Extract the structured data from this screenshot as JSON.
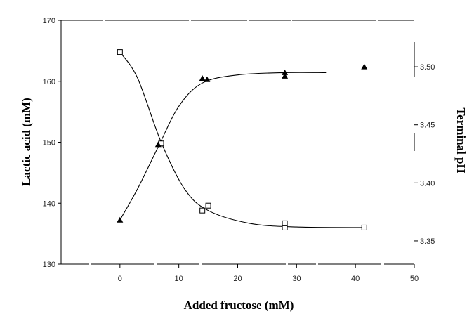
{
  "chart_data": {
    "type": "line",
    "title": "",
    "xlabel": "Added fructose (mM)",
    "ylabel": "Lactic acid (mM)",
    "y2label": "Terminal pH",
    "xlim": [
      -10,
      50
    ],
    "ylim": [
      130,
      170
    ],
    "y2lim": [
      3.33,
      3.54
    ],
    "x_ticks": [
      "0",
      "10",
      "20",
      "30",
      "40",
      "50"
    ],
    "y_ticks": [
      "130",
      "140",
      "150",
      "160",
      "170"
    ],
    "y2_ticks": [
      "3.35",
      "3.40",
      "3.45",
      "3.50"
    ],
    "grid": false,
    "legend": "none",
    "series": [
      {
        "axis": "left",
        "marker": "open-square",
        "points": [
          {
            "x": 0,
            "y": 164.8
          },
          {
            "x": 7,
            "y": 149.8
          },
          {
            "x": 14,
            "y": 138.8
          },
          {
            "x": 15,
            "y": 139.6
          },
          {
            "x": 28,
            "y": 136.0
          },
          {
            "x": 28,
            "y": 136.7
          },
          {
            "x": 41.5,
            "y": 136.0
          }
        ],
        "curve": [
          {
            "x": 0,
            "y": 164.8
          },
          {
            "x": 3,
            "y": 160.5
          },
          {
            "x": 7,
            "y": 150.0
          },
          {
            "x": 11,
            "y": 142.3
          },
          {
            "x": 15,
            "y": 138.8
          },
          {
            "x": 22,
            "y": 136.7
          },
          {
            "x": 30,
            "y": 136.1
          },
          {
            "x": 41.5,
            "y": 136.0
          }
        ]
      },
      {
        "axis": "right",
        "marker": "filled-triangle",
        "points": [
          {
            "x": 0,
            "y": 3.368
          },
          {
            "x": 6.5,
            "y": 3.433
          },
          {
            "x": 14,
            "y": 3.49
          },
          {
            "x": 14.8,
            "y": 3.489
          },
          {
            "x": 28,
            "y": 3.495
          },
          {
            "x": 28,
            "y": 3.492
          },
          {
            "x": 41.5,
            "y": 3.5
          }
        ],
        "curve": [
          {
            "x": 0,
            "y": 3.368
          },
          {
            "x": 3,
            "y": 3.395
          },
          {
            "x": 6.5,
            "y": 3.431
          },
          {
            "x": 10,
            "y": 3.466
          },
          {
            "x": 14,
            "y": 3.486
          },
          {
            "x": 20,
            "y": 3.493
          },
          {
            "x": 28,
            "y": 3.495
          },
          {
            "x": 35,
            "y": 3.495
          }
        ]
      }
    ]
  },
  "colors": {
    "ink": "#000000",
    "background": "#ffffff"
  }
}
